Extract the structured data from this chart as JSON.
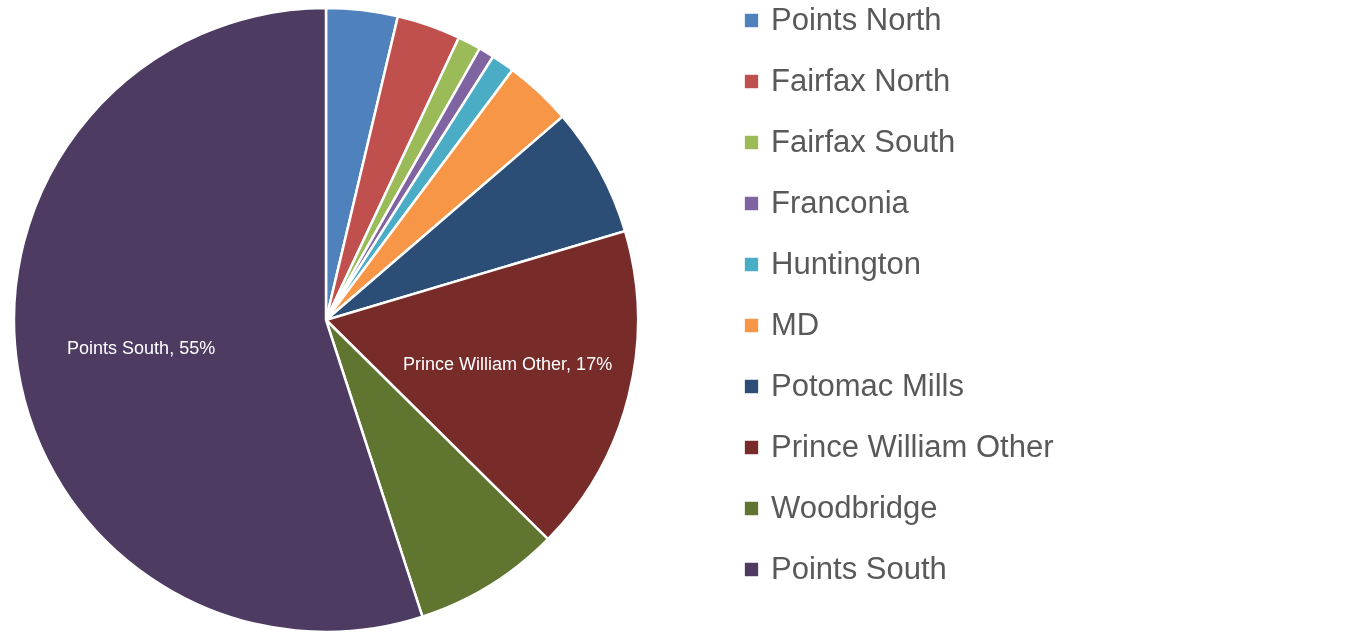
{
  "chart_data": {
    "type": "pie",
    "categories": [
      "Points North",
      "Fairfax North",
      "Fairfax South",
      "Franconia",
      "Huntington",
      "MD",
      "Potomac Mills",
      "Prince William Other",
      "Woodbridge",
      "Points South"
    ],
    "values": [
      3.7,
      3.3,
      1.2,
      0.8,
      1.2,
      3.5,
      6.7,
      17,
      7.6,
      55
    ],
    "colors": [
      "#4f81bd",
      "#c0504d",
      "#9bbb59",
      "#8064a2",
      "#4bacc6",
      "#f79646",
      "#2c4d75",
      "#772c2a",
      "#5f7530",
      "#4d3b62"
    ],
    "value_labels": [
      null,
      null,
      null,
      null,
      null,
      null,
      null,
      "Prince William Other, 17%",
      null,
      "Points South, 55%"
    ],
    "legend": "right"
  }
}
